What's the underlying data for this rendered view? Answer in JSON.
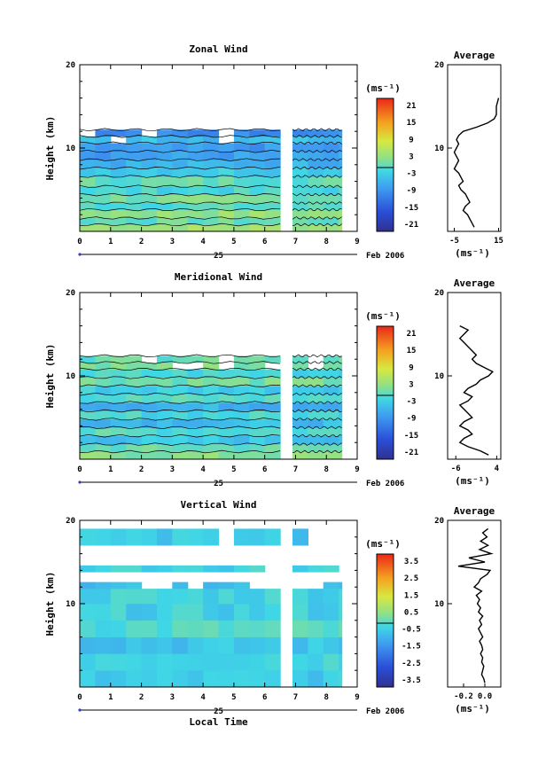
{
  "chart_data": [
    {
      "type": "heatmap",
      "title": "Zonal Wind",
      "ylabel": "Height (km)",
      "xlabel": "",
      "ylim": [
        0,
        20
      ],
      "xlim": [
        0,
        9
      ],
      "x_ticks": [
        "0",
        "1",
        "2",
        "3",
        "4",
        "5",
        "6",
        "7",
        "8",
        "9"
      ],
      "y_ticks": [
        "10",
        "20"
      ],
      "date_axis": {
        "day": "25",
        "month_year": "Feb 2006"
      },
      "colorbar": {
        "unit": "(ms⁻¹)",
        "ticks": [
          "21",
          "15",
          "9",
          "3",
          "-3",
          "-9",
          "-15",
          "-21"
        ],
        "range": [
          -24,
          24
        ]
      },
      "data_gap_hours": [
        6.5,
        6.9
      ],
      "data_top_km": 12.2,
      "height_bands": [
        {
          "bottom": 0.0,
          "top": 0.8,
          "value": 4
        },
        {
          "bottom": 0.8,
          "top": 1.6,
          "value": 0
        },
        {
          "bottom": 1.6,
          "top": 2.6,
          "value": 3
        },
        {
          "bottom": 2.6,
          "top": 3.4,
          "value": -1
        },
        {
          "bottom": 3.4,
          "top": 4.4,
          "value": 1
        },
        {
          "bottom": 4.4,
          "top": 5.4,
          "value": -2
        },
        {
          "bottom": 5.4,
          "top": 6.6,
          "value": 0
        },
        {
          "bottom": 6.6,
          "top": 7.6,
          "value": -3
        },
        {
          "bottom": 7.6,
          "top": 8.6,
          "value": -6
        },
        {
          "bottom": 8.6,
          "top": 9.6,
          "value": -8
        },
        {
          "bottom": 9.6,
          "top": 10.6,
          "value": -9
        },
        {
          "bottom": 10.6,
          "top": 11.4,
          "value": -5
        },
        {
          "bottom": 11.4,
          "top": 12.2,
          "value": -10
        }
      ],
      "profile": {
        "title": "Average",
        "xlabel": "(ms⁻¹)",
        "x_ticks": [
          "-5",
          "15"
        ],
        "xlim": [
          -8,
          16
        ],
        "y_ticks": [
          "10",
          "20"
        ],
        "heights": [
          0.5,
          1.0,
          1.5,
          2.0,
          2.5,
          3.0,
          3.5,
          4.0,
          4.5,
          5.0,
          5.5,
          6.0,
          6.5,
          7.0,
          7.5,
          8.0,
          8.5,
          9.0,
          9.5,
          10.0,
          10.5,
          11.0,
          11.5,
          12.0,
          12.5,
          13.0,
          13.5,
          14.0,
          15.0,
          16.0
        ],
        "values": [
          4,
          3,
          2,
          1,
          -1,
          0,
          2,
          1,
          0,
          -2,
          -3,
          -1,
          -2,
          -3,
          -5,
          -4,
          -3,
          -4,
          -5,
          -4,
          -3,
          -4,
          -3,
          -1,
          5,
          10,
          13,
          14,
          14,
          15
        ]
      }
    },
    {
      "type": "heatmap",
      "title": "Meridional Wind",
      "ylabel": "Height (km)",
      "xlabel": "",
      "ylim": [
        0,
        20
      ],
      "xlim": [
        0,
        9
      ],
      "x_ticks": [
        "0",
        "1",
        "2",
        "3",
        "4",
        "5",
        "6",
        "7",
        "8",
        "9"
      ],
      "y_ticks": [
        "10",
        "20"
      ],
      "date_axis": {
        "day": "25",
        "month_year": "Feb 2006"
      },
      "colorbar": {
        "unit": "(ms⁻¹)",
        "ticks": [
          "21",
          "15",
          "9",
          "3",
          "-3",
          "-9",
          "-15",
          "-21"
        ],
        "range": [
          -24,
          24
        ]
      },
      "data_gap_hours": [
        6.5,
        6.9
      ],
      "data_top_km": 12.4,
      "height_bands": [
        {
          "bottom": 0.0,
          "top": 0.9,
          "value": 2
        },
        {
          "bottom": 0.9,
          "top": 1.8,
          "value": 0
        },
        {
          "bottom": 1.8,
          "top": 2.8,
          "value": -4
        },
        {
          "bottom": 2.8,
          "top": 3.8,
          "value": -1
        },
        {
          "bottom": 3.8,
          "top": 4.8,
          "value": -5
        },
        {
          "bottom": 4.8,
          "top": 5.8,
          "value": -2
        },
        {
          "bottom": 5.8,
          "top": 6.8,
          "value": -6
        },
        {
          "bottom": 6.8,
          "top": 7.8,
          "value": -1
        },
        {
          "bottom": 7.8,
          "top": 8.8,
          "value": -3
        },
        {
          "bottom": 8.8,
          "top": 9.8,
          "value": 1
        },
        {
          "bottom": 9.8,
          "top": 10.8,
          "value": -2
        },
        {
          "bottom": 10.8,
          "top": 11.6,
          "value": 2
        },
        {
          "bottom": 11.6,
          "top": 12.4,
          "value": 0
        }
      ],
      "profile": {
        "title": "Average",
        "xlabel": "(ms⁻¹)",
        "x_ticks": [
          "-6",
          "4"
        ],
        "xlim": [
          -8,
          5
        ],
        "y_ticks": [
          "10",
          "20"
        ],
        "heights": [
          0.5,
          1.0,
          1.5,
          2.0,
          2.5,
          3.0,
          3.5,
          4.0,
          4.5,
          5.0,
          5.5,
          6.0,
          6.5,
          7.0,
          7.5,
          8.0,
          8.5,
          9.0,
          9.5,
          10.0,
          10.5,
          11.0,
          11.5,
          12.0,
          12.5,
          13.0,
          13.5,
          14.0,
          14.5,
          15.0,
          15.5,
          16.0
        ],
        "values": [
          2,
          0,
          -3,
          -5,
          -4,
          -2,
          -3,
          -5,
          -4,
          -2,
          -3,
          -4,
          -5,
          -3,
          -2,
          -4,
          -3,
          -1,
          0,
          2,
          3,
          1,
          -1,
          -2,
          -1,
          -2,
          -3,
          -4,
          -5,
          -4,
          -3,
          -5
        ]
      }
    },
    {
      "type": "heatmap",
      "title": "Vertical Wind",
      "ylabel": "Height (km)",
      "xlabel": "Local Time",
      "ylim": [
        0,
        20
      ],
      "xlim": [
        0,
        9
      ],
      "x_ticks": [
        "0",
        "1",
        "2",
        "3",
        "4",
        "5",
        "6",
        "7",
        "8",
        "9"
      ],
      "y_ticks": [
        "10",
        "20"
      ],
      "date_axis": {
        "day": "25",
        "month_year": "Feb 2006"
      },
      "colorbar": {
        "unit": "(ms⁻¹)",
        "ticks": [
          "3.5",
          "2.5",
          "1.5",
          "0.5",
          "-0.5",
          "-1.5",
          "-2.5",
          "-3.5"
        ],
        "range": [
          -4,
          4
        ]
      },
      "data_gap_hours": [
        6.5,
        6.9
      ],
      "data_top_km": 19.0,
      "height_bands": [
        {
          "bottom": 0.0,
          "top": 2.0,
          "value": -0.6
        },
        {
          "bottom": 2.0,
          "top": 4.0,
          "value": -0.3
        },
        {
          "bottom": 4.0,
          "top": 6.0,
          "value": -0.7
        },
        {
          "bottom": 6.0,
          "top": 8.0,
          "value": -0.2
        },
        {
          "bottom": 8.0,
          "top": 10.0,
          "value": -0.5
        },
        {
          "bottom": 10.0,
          "top": 11.8,
          "value": -0.4
        },
        {
          "bottom": 11.8,
          "top": 12.6,
          "value": -0.8
        },
        {
          "bottom": 13.8,
          "top": 14.6,
          "value": -0.4
        },
        {
          "bottom": 17.0,
          "top": 19.0,
          "value": -0.6
        }
      ],
      "profile": {
        "title": "Average",
        "xlabel": "(ms⁻¹)",
        "x_ticks": [
          "-0.2",
          "0.0"
        ],
        "xlim": [
          -0.35,
          0.15
        ],
        "y_ticks": [
          "10",
          "20"
        ],
        "heights": [
          0.5,
          1.0,
          1.5,
          2.0,
          2.5,
          3.0,
          3.5,
          4.0,
          4.5,
          5.0,
          5.5,
          6.0,
          6.5,
          7.0,
          7.5,
          8.0,
          8.5,
          9.0,
          9.5,
          10.0,
          10.5,
          11.0,
          11.5,
          12.0,
          12.5,
          13.0,
          13.5,
          14.0,
          14.5,
          15.0,
          15.5,
          16.0,
          16.5,
          17.0,
          17.5,
          18.0,
          18.5,
          19.0
        ],
        "values": [
          0.0,
          -0.01,
          -0.03,
          -0.02,
          -0.01,
          -0.03,
          -0.02,
          -0.04,
          -0.02,
          -0.03,
          -0.05,
          -0.02,
          -0.04,
          -0.06,
          -0.03,
          -0.05,
          -0.02,
          -0.06,
          -0.04,
          -0.07,
          -0.05,
          -0.08,
          -0.03,
          -0.1,
          -0.06,
          -0.04,
          0.02,
          0.05,
          -0.25,
          0.0,
          -0.15,
          0.06,
          -0.05,
          0.03,
          -0.04,
          0.02,
          -0.02,
          0.03
        ]
      }
    }
  ]
}
